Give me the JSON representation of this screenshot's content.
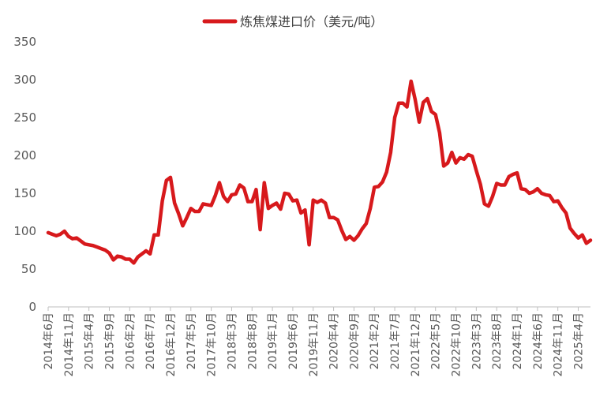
{
  "chart_data": {
    "type": "line",
    "legend": {
      "position": "top"
    },
    "grid": false,
    "ylim": [
      0,
      350
    ],
    "y_ticks": [
      0,
      50,
      100,
      150,
      200,
      250,
      300,
      350
    ],
    "x_tick_labels": [
      "2014年6月",
      "2014年11月",
      "2015年4月",
      "2015年9月",
      "2016年2月",
      "2016年7月",
      "2016年12月",
      "2017年5月",
      "2017年10月",
      "2018年3月",
      "2018年8月",
      "2019年1月",
      "2019年6月",
      "2019年11月",
      "2020年4月",
      "2020年9月",
      "2021年2月",
      "2021年7月",
      "2021年12月",
      "2022年5月",
      "2022年10月",
      "2023年3月",
      "2023年8月",
      "2024年1月",
      "2024年6月",
      "2024年11月",
      "2025年4月"
    ],
    "x_tick_interval_months": 5,
    "series": [
      {
        "name": "炼焦煤进口价（美元/吨）",
        "color": "#d7191c",
        "values": [
          98,
          96,
          94,
          96,
          100,
          93,
          90,
          91,
          87,
          83,
          82,
          81,
          79,
          77,
          75,
          71,
          62,
          67,
          66,
          63,
          63,
          58,
          66,
          70,
          74,
          70,
          95,
          95,
          140,
          167,
          171,
          137,
          123,
          107,
          118,
          130,
          126,
          126,
          136,
          135,
          134,
          147,
          164,
          146,
          139,
          148,
          149,
          161,
          157,
          139,
          139,
          155,
          102,
          164,
          130,
          134,
          137,
          129,
          150,
          149,
          140,
          141,
          124,
          128,
          82,
          141,
          138,
          141,
          137,
          118,
          118,
          115,
          101,
          89,
          93,
          88,
          94,
          103,
          110,
          130,
          158,
          159,
          165,
          178,
          204,
          250,
          269,
          269,
          264,
          298,
          274,
          244,
          270,
          275,
          258,
          254,
          230,
          186,
          190,
          204,
          190,
          197,
          195,
          201,
          199,
          180,
          162,
          136,
          133,
          146,
          163,
          161,
          161,
          172,
          175,
          177,
          156,
          155,
          150,
          152,
          156,
          150,
          148,
          147,
          139,
          140,
          131,
          124,
          104,
          97,
          91,
          95,
          84,
          88
        ]
      }
    ]
  }
}
